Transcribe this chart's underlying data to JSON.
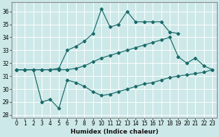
{
  "xlabel": "Humidex (Indice chaleur)",
  "bg_color": "#cde8e8",
  "grid_color": "#ffffff",
  "line_color": "#1a6b6b",
  "xlim": [
    -0.5,
    23.5
  ],
  "ylim": [
    27.8,
    36.7
  ],
  "yticks": [
    28,
    29,
    30,
    31,
    32,
    33,
    34,
    35,
    36
  ],
  "xticks": [
    0,
    1,
    2,
    3,
    4,
    5,
    6,
    7,
    8,
    9,
    10,
    11,
    12,
    13,
    14,
    15,
    16,
    17,
    18,
    19,
    20,
    21,
    22,
    23
  ],
  "bottom_y": [
    31.5,
    31.5,
    31.5,
    29.0,
    29.2,
    28.5,
    30.7,
    30.5,
    30.2,
    29.8,
    29.5,
    29.6,
    29.8,
    30.0,
    30.2,
    30.4,
    30.5,
    30.7,
    30.9,
    31.0,
    31.1,
    31.2,
    31.3,
    31.5
  ],
  "mid_y": [
    31.5,
    31.5,
    31.5,
    31.5,
    31.5,
    31.5,
    31.5,
    31.6,
    31.8,
    32.1,
    32.4,
    32.6,
    32.8,
    33.0,
    33.2,
    33.4,
    33.6,
    33.8,
    34.0,
    32.5,
    32.0,
    32.4,
    31.8,
    31.5
  ],
  "top_y": [
    31.5,
    31.5,
    31.5,
    31.5,
    31.5,
    31.6,
    33.0,
    33.3,
    33.7,
    34.3,
    36.2,
    34.8,
    35.0,
    36.0,
    35.2,
    35.2,
    35.2,
    35.2,
    34.4,
    34.3,
    null,
    null,
    null,
    null
  ],
  "xlabel_fontsize": 6.5,
  "tick_fontsize": 5.5,
  "linewidth": 0.9,
  "markersize": 2.2
}
